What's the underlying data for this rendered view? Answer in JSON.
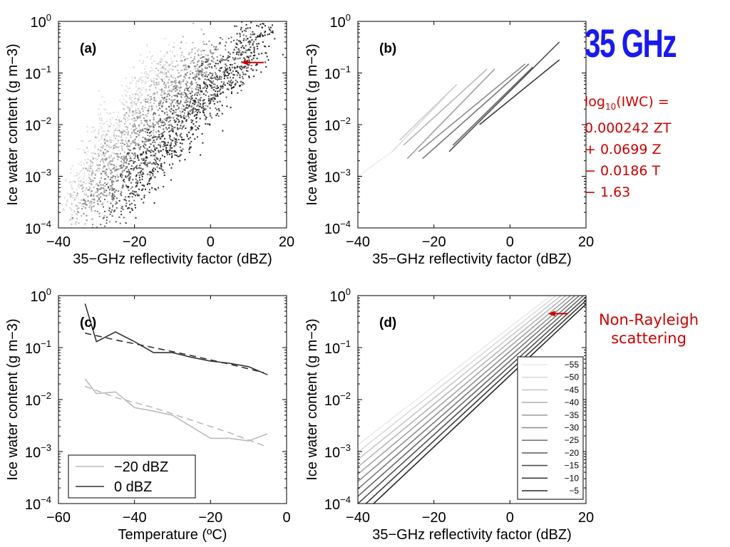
{
  "annotations": {
    "frequency_title": "35 GHz",
    "formula_lines": [
      "log10(IWC) =",
      "0.000242 ZT",
      "+ 0.0699 Z",
      "− 0.0186 T",
      "− 1.63"
    ],
    "note_lines": [
      "Non-Rayleigh",
      "scattering"
    ],
    "colors": {
      "freq_title": "#1a1aee",
      "formula": "#cc0000",
      "note": "#cc0000",
      "arrow": "#cc0000"
    }
  },
  "chart_data": [
    {
      "id": "a",
      "type": "scatter",
      "panel_label": "(a)",
      "xlabel": "35−GHz reflectivity factor (dBZ)",
      "ylabel": "Ice water content (g m−3)",
      "xlim": [
        -40,
        20
      ],
      "ylim": [
        0.0001,
        1
      ],
      "yscale": "log",
      "x_ticks": [
        "−40",
        "−20",
        "0",
        "20"
      ],
      "y_ticks": [
        "10",
        "10",
        "10",
        "10",
        "10"
      ],
      "y_tick_exponents": [
        "−4",
        "−3",
        "−2",
        "−1",
        "0"
      ],
      "grayscale_by_temperature": true,
      "arrow_at": {
        "x": 8,
        "y": 0.16
      },
      "series": [
        {
          "temperature": -55,
          "color": "#dddddd",
          "points": [
            [
              -38,
              0.0003
            ],
            [
              -35,
              0.0006
            ],
            [
              -33,
              0.0012
            ],
            [
              -30,
              0.003
            ],
            [
              -28,
              0.005
            ],
            [
              -25,
              0.01
            ],
            [
              -22,
              0.02
            ],
            [
              -20,
              0.035
            ],
            [
              -18,
              0.05
            ],
            [
              -15,
              0.08
            ],
            [
              -12,
              0.12
            ],
            [
              -10,
              0.15
            ]
          ]
        },
        {
          "temperature": -45,
          "color": "#b5b5b5",
          "points": [
            [
              -36,
              0.0002
            ],
            [
              -32,
              0.0006
            ],
            [
              -30,
              0.0012
            ],
            [
              -27,
              0.002
            ],
            [
              -24,
              0.004
            ],
            [
              -21,
              0.008
            ],
            [
              -18,
              0.015
            ],
            [
              -15,
              0.03
            ],
            [
              -12,
              0.05
            ],
            [
              -9,
              0.08
            ],
            [
              -6,
              0.12
            ],
            [
              -3,
              0.18
            ]
          ]
        },
        {
          "temperature": -35,
          "color": "#8c8c8c",
          "points": [
            [
              -33,
              0.0002
            ],
            [
              -30,
              0.0004
            ],
            [
              -27,
              0.0008
            ],
            [
              -24,
              0.0015
            ],
            [
              -21,
              0.003
            ],
            [
              -18,
              0.006
            ],
            [
              -15,
              0.01
            ],
            [
              -12,
              0.02
            ],
            [
              -9,
              0.035
            ],
            [
              -6,
              0.06
            ],
            [
              -3,
              0.09
            ],
            [
              0,
              0.15
            ],
            [
              3,
              0.25
            ]
          ]
        },
        {
          "temperature": -25,
          "color": "#5e5e5e",
          "points": [
            [
              -28,
              0.0002
            ],
            [
              -25,
              0.0004
            ],
            [
              -22,
              0.0008
            ],
            [
              -19,
              0.0015
            ],
            [
              -16,
              0.003
            ],
            [
              -13,
              0.005
            ],
            [
              -10,
              0.01
            ],
            [
              -7,
              0.018
            ],
            [
              -4,
              0.03
            ],
            [
              -1,
              0.05
            ],
            [
              2,
              0.08
            ],
            [
              5,
              0.13
            ],
            [
              8,
              0.25
            ],
            [
              10,
              0.4
            ]
          ]
        },
        {
          "temperature": -15,
          "color": "#2a2a2a",
          "points": [
            [
              -22,
              0.0004
            ],
            [
              -19,
              0.0008
            ],
            [
              -16,
              0.0015
            ],
            [
              -13,
              0.003
            ],
            [
              -10,
              0.005
            ],
            [
              -7,
              0.009
            ],
            [
              -4,
              0.016
            ],
            [
              -1,
              0.03
            ],
            [
              2,
              0.05
            ],
            [
              5,
              0.09
            ],
            [
              8,
              0.16
            ],
            [
              11,
              0.3
            ],
            [
              13,
              0.5
            ],
            [
              15,
              0.8
            ]
          ]
        }
      ]
    },
    {
      "id": "b",
      "type": "line",
      "panel_label": "(b)",
      "xlabel": "35−GHz reflectivity factor (dBZ)",
      "ylabel": "Ice water content (g m−3)",
      "xlim": [
        -40,
        20
      ],
      "ylim": [
        0.0001,
        1
      ],
      "yscale": "log",
      "x_ticks": [
        "−40",
        "−20",
        "0",
        "20"
      ],
      "y_ticks": [
        "10",
        "10",
        "10",
        "10",
        "10"
      ],
      "y_tick_exponents": [
        "−4",
        "−3",
        "−2",
        "−1",
        "0"
      ],
      "series": [
        {
          "color": "#eeeeee",
          "x": [
            -40,
            -31
          ],
          "y": [
            0.001,
            0.003
          ]
        },
        {
          "color": "#dddddd",
          "x": [
            -31,
            -17
          ],
          "y": [
            0.003,
            0.035
          ]
        },
        {
          "color": "#cccccc",
          "x": [
            -29,
            -14
          ],
          "y": [
            0.005,
            0.06
          ]
        },
        {
          "color": "#b8b8b8",
          "x": [
            -28,
            -6
          ],
          "y": [
            0.004,
            0.12
          ]
        },
        {
          "color": "#a0a0a0",
          "x": [
            -27,
            -4
          ],
          "y": [
            0.0022,
            0.12
          ]
        },
        {
          "color": "#8c8c8c",
          "x": [
            -24,
            4
          ],
          "y": [
            0.003,
            0.15
          ]
        },
        {
          "color": "#777777",
          "x": [
            -23,
            5
          ],
          "y": [
            0.0022,
            0.15
          ]
        },
        {
          "color": "#646464",
          "x": [
            -15,
            6
          ],
          "y": [
            0.004,
            0.13
          ]
        },
        {
          "color": "#505050",
          "x": [
            -16,
            13
          ],
          "y": [
            0.003,
            0.4
          ]
        },
        {
          "color": "#3a3a3a",
          "x": [
            -8,
            13
          ],
          "y": [
            0.01,
            0.18
          ]
        }
      ]
    },
    {
      "id": "c",
      "type": "line",
      "panel_label": "(c)",
      "xlabel": "Temperature (ºC)",
      "ylabel": "Ice water content (g m−3)",
      "xlim": [
        -60,
        0
      ],
      "ylim": [
        0.0001,
        1
      ],
      "yscale": "log",
      "x_ticks": [
        "−60",
        "−40",
        "−20",
        "0"
      ],
      "y_ticks": [
        "10",
        "10",
        "10",
        "10",
        "10"
      ],
      "y_tick_exponents": [
        "−4",
        "−3",
        "−2",
        "−1",
        "0"
      ],
      "legend": {
        "position": "bottom-left",
        "entries": [
          "−20 dBZ",
          "0 dBZ"
        ]
      },
      "series": [
        {
          "name": "−20 dBZ",
          "color": "#bbbbbb",
          "style": "solid",
          "x": [
            -53,
            -50,
            -45,
            -40,
            -35,
            -30,
            -25,
            -20,
            -15,
            -10,
            -5
          ],
          "y": [
            0.025,
            0.013,
            0.014,
            0.007,
            0.006,
            0.005,
            0.003,
            0.0018,
            0.0018,
            0.0016,
            0.0022
          ]
        },
        {
          "name": "−20 dBZ fit",
          "color": "#bbbbbb",
          "style": "dashed",
          "x": [
            -53,
            -45,
            -35,
            -25,
            -15,
            -6
          ],
          "y": [
            0.018,
            0.011,
            0.007,
            0.004,
            0.0023,
            0.0013
          ]
        },
        {
          "name": "0 dBZ",
          "color": "#333333",
          "style": "solid",
          "x": [
            -53,
            -50,
            -45,
            -40,
            -35,
            -30,
            -25,
            -20,
            -15,
            -10,
            -5
          ],
          "y": [
            0.7,
            0.13,
            0.2,
            0.13,
            0.08,
            0.08,
            0.065,
            0.055,
            0.05,
            0.043,
            0.03
          ]
        },
        {
          "name": "0 dBZ fit",
          "color": "#333333",
          "style": "dashed",
          "x": [
            -53,
            -45,
            -35,
            -25,
            -15,
            -6
          ],
          "y": [
            0.19,
            0.14,
            0.1,
            0.07,
            0.048,
            0.033
          ]
        }
      ]
    },
    {
      "id": "d",
      "type": "line",
      "panel_label": "(d)",
      "xlabel": "35−GHz reflectivity factor (dBZ)",
      "ylabel": "Ice water content (g m−3)",
      "xlim": [
        -40,
        20
      ],
      "ylim": [
        0.0001,
        1
      ],
      "yscale": "log",
      "x_ticks": [
        "−40",
        "−20",
        "0",
        "20"
      ],
      "y_ticks": [
        "10",
        "10",
        "10",
        "10",
        "10"
      ],
      "y_tick_exponents": [
        "−4",
        "−3",
        "−2",
        "−1",
        "0"
      ],
      "legend": {
        "position": "bottom-right",
        "entries": [
          "−55",
          "−50",
          "−45",
          "−40",
          "−35",
          "−30",
          "−25",
          "−20",
          "−15",
          "−10",
          "−5"
        ]
      },
      "arrow_at": {
        "x": 10,
        "y": 0.45
      },
      "formula": {
        "a": 0.000242,
        "b": 0.0699,
        "c": -0.0186,
        "d": -1.63
      },
      "series": [
        {
          "name": "−55",
          "T": -55,
          "color": "#eaeaea"
        },
        {
          "name": "−50",
          "T": -50,
          "color": "#dadada"
        },
        {
          "name": "−45",
          "T": -45,
          "color": "#c8c8c8"
        },
        {
          "name": "−40",
          "T": -40,
          "color": "#b6b6b6"
        },
        {
          "name": "−35",
          "T": -35,
          "color": "#a2a2a2"
        },
        {
          "name": "−30",
          "T": -30,
          "color": "#8e8e8e"
        },
        {
          "name": "−25",
          "T": -25,
          "color": "#7a7a7a"
        },
        {
          "name": "−20",
          "T": -20,
          "color": "#666666"
        },
        {
          "name": "−15",
          "T": -15,
          "color": "#505050"
        },
        {
          "name": "−10",
          "T": -10,
          "color": "#3c3c3c"
        },
        {
          "name": "−5",
          "T": -5,
          "color": "#282828"
        }
      ]
    }
  ]
}
